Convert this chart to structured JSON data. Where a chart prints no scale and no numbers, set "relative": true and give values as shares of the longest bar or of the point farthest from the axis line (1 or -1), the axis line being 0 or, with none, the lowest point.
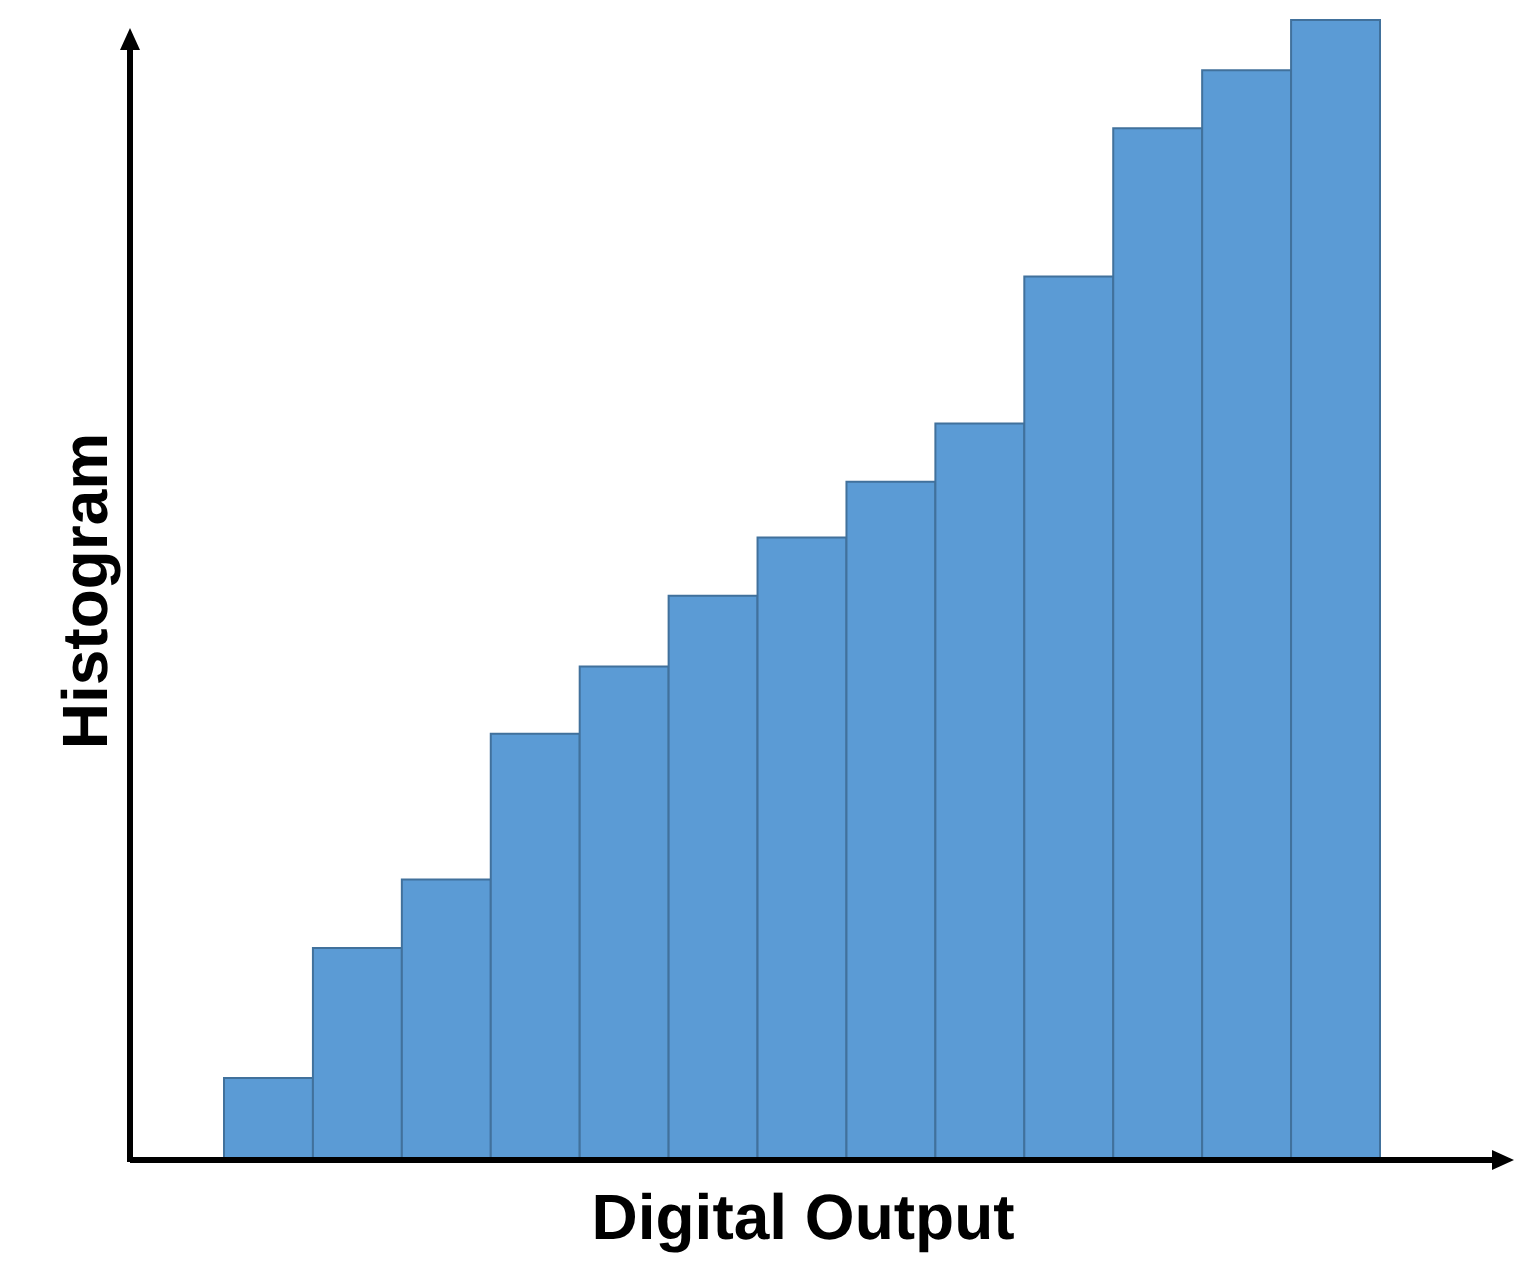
{
  "chart_data": {
    "type": "bar",
    "relative": true,
    "xlabel": "Digital Output",
    "ylabel": "Histogram",
    "categories": [
      null,
      null,
      null,
      null,
      null,
      null,
      null,
      null,
      null,
      null,
      null,
      null,
      null
    ],
    "values": [
      0.072,
      0.186,
      0.246,
      0.374,
      0.433,
      0.495,
      0.546,
      0.595,
      0.646,
      0.775,
      0.905,
      0.956,
      1
    ],
    "color": "#5b9bd5",
    "grid": false
  }
}
